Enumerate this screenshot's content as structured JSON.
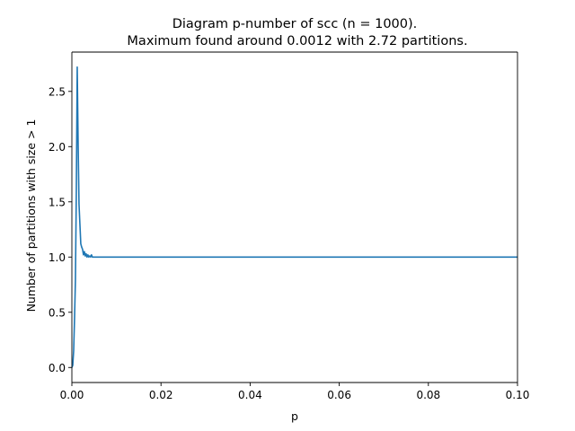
{
  "chart_data": {
    "type": "line",
    "title_line1": "Diagram p-number of scc (n = 1000).",
    "title_line2": "Maximum found around 0.0012 with 2.72 partitions.",
    "xlabel": "p",
    "ylabel": "Number of partitions with size > 1",
    "xlim": [
      0.0,
      0.1
    ],
    "ylim": [
      -0.136,
      2.856
    ],
    "grid": false,
    "x_ticks": [
      0.0,
      0.02,
      0.04,
      0.06,
      0.08,
      0.1
    ],
    "x_tick_labels": [
      "0.00",
      "0.02",
      "0.04",
      "0.06",
      "0.08",
      "0.10"
    ],
    "y_ticks": [
      0.0,
      0.5,
      1.0,
      1.5,
      2.0,
      2.5
    ],
    "y_tick_labels": [
      "0.0",
      "0.5",
      "1.0",
      "1.5",
      "2.0",
      "2.5"
    ],
    "series": [
      {
        "color": "#1f77b4",
        "x": [
          0.0,
          0.0002,
          0.0004,
          0.0006,
          0.0008,
          0.001,
          0.0012,
          0.0014,
          0.0016,
          0.0018,
          0.002,
          0.0022,
          0.0024,
          0.0026,
          0.0028,
          0.003,
          0.0032,
          0.0034,
          0.0036,
          0.0038,
          0.004,
          0.0042,
          0.0044,
          0.0046,
          0.0048,
          0.005,
          0.006,
          0.008,
          0.01,
          0.02,
          0.04,
          0.06,
          0.08,
          0.1
        ],
        "y": [
          0.0,
          0.02,
          0.15,
          0.45,
          0.8,
          1.6,
          2.72,
          2.05,
          1.48,
          1.3,
          1.12,
          1.09,
          1.07,
          1.02,
          1.05,
          1.01,
          1.03,
          1.0,
          1.02,
          1.0,
          1.01,
          1.0,
          1.02,
          1.0,
          1.0,
          1.0,
          1.0,
          1.0,
          1.0,
          1.0,
          1.0,
          1.0,
          1.0,
          1.0
        ]
      }
    ]
  }
}
